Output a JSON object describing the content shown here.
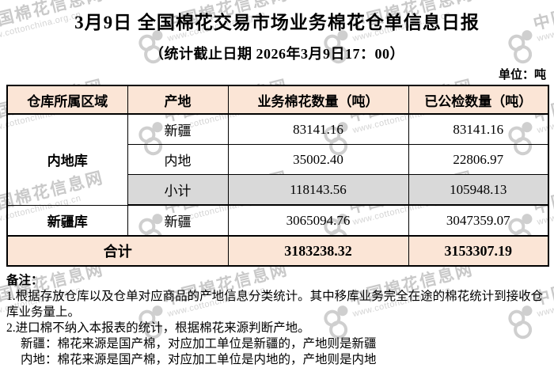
{
  "title": "3月9日 全国棉花交易市场业务棉花仓单信息日报",
  "subtitle": "（统计截止日期 2026年3月9日17：00）",
  "unit_label": "单位：吨",
  "watermark": {
    "name": "中国棉花信息网",
    "url": "www.cottonchina.org.cn"
  },
  "table": {
    "headers": [
      "仓库所属区域",
      "产地",
      "业务棉花数量（吨）",
      "已公检数量（吨）"
    ],
    "rows": [
      {
        "region": "内地库",
        "origin": "新疆",
        "business_qty": "83141.16",
        "inspected_qty": "83141.16"
      },
      {
        "origin": "内地",
        "business_qty": "35002.40",
        "inspected_qty": "22806.97"
      },
      {
        "origin": "小计",
        "business_qty": "118143.56",
        "inspected_qty": "105948.13"
      },
      {
        "region": "新疆库",
        "origin": "新疆",
        "business_qty": "3065094.76",
        "inspected_qty": "3047359.07"
      }
    ],
    "total": {
      "label": "合计",
      "business_qty": "3183238.32",
      "inspected_qty": "3153307.19"
    }
  },
  "notes": {
    "title": "备注：",
    "lines": [
      "1.根据存放仓库以及仓单对应商品的产地信息分类统计。其中移库业务完全在途的棉花统计到接收仓库业务量上。",
      "2.进口棉不纳入本报表的统计，根据棉花来源判断产地。",
      "新疆：棉花来源是国产棉，对应加工单位是新疆的，产地则是新疆",
      "内地：棉花来源是国产棉，对应加工单位是内地的，产地则是内地"
    ]
  },
  "colors": {
    "header_bg": "#fbe5d6",
    "subtotal_bg": "#d9d9d9",
    "total_bg": "#fbe5d6",
    "border": "#000000",
    "watermark_text": "#c9c9c9"
  }
}
